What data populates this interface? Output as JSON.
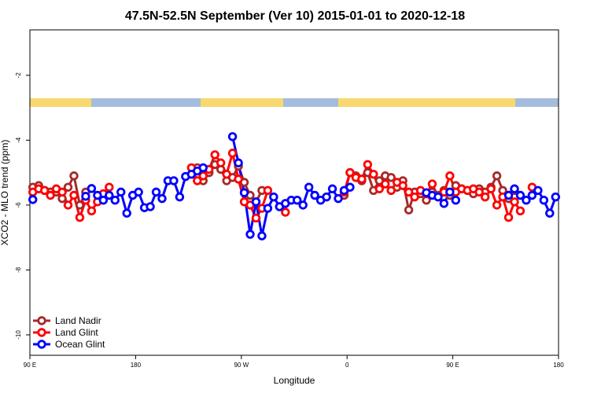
{
  "chart_data": {
    "type": "line",
    "title": "47.5N-52.5N September (Ver 10)   2015-01-01 to 2020-12-18",
    "x_label": "Longitude",
    "y_label": "XCO2 - MLO trend (ppm)",
    "xlim": [
      90,
      540
    ],
    "xticks": [
      {
        "value": 90,
        "label": "90 E"
      },
      180,
      {
        "value": 270,
        "label": "90 W"
      },
      {
        "value": 360,
        "label": "0"
      },
      {
        "value": 450,
        "label": "90 E"
      },
      {
        "value": 540,
        "label": "180"
      }
    ],
    "ylim": [
      -10.63,
      -0.6
    ],
    "yticks": [
      -2,
      -4,
      -6,
      -8,
      -10
    ],
    "legend": "bottom-left",
    "x": [
      92.5,
      97.5,
      102.5,
      107.5,
      112.5,
      117.5,
      122.5,
      127.5,
      132.5,
      137.5,
      142.5,
      147.5,
      152.5,
      157.5,
      162.5,
      167.5,
      172.5,
      177.5,
      182.5,
      187.5,
      192.5,
      197.5,
      202.5,
      207.5,
      212.5,
      217.5,
      222.5,
      227.5,
      232.5,
      237.5,
      242.5,
      247.5,
      252.5,
      257.5,
      262.5,
      267.5,
      272.5,
      277.5,
      282.5,
      287.5,
      292.5,
      297.5,
      302.5,
      307.5,
      312.5,
      317.5,
      322.5,
      327.5,
      332.5,
      337.5,
      342.5,
      347.5,
      352.5,
      357.5,
      362.5,
      367.5,
      372.5,
      377.5,
      382.5,
      387.5,
      392.5,
      397.5,
      402.5,
      407.5,
      412.5,
      417.5,
      422.5,
      427.5,
      432.5,
      437.5,
      442.5,
      447.5,
      452.5,
      457.5,
      462.5,
      467.5,
      472.5,
      477.5,
      482.5,
      487.5,
      492.5,
      497.5,
      502.5,
      507.5,
      512.5,
      517.5,
      522.5,
      527.5,
      532.5,
      537.5
    ],
    "series": [
      {
        "name": "Land Nadir",
        "color": "#a52a2a",
        "values": [
          -5.45,
          -5.4,
          -5.55,
          -5.6,
          -5.6,
          -5.8,
          -5.45,
          -5.1,
          -6.0,
          -5.6,
          null,
          null,
          null,
          null,
          null,
          null,
          null,
          null,
          null,
          null,
          null,
          null,
          null,
          null,
          null,
          null,
          null,
          null,
          -4.85,
          -5.25,
          -5.0,
          -4.75,
          -4.9,
          -5.25,
          -5.15,
          -4.8,
          -5.3,
          -5.7,
          -5.9,
          -5.55,
          null,
          null,
          null,
          null,
          null,
          null,
          null,
          null,
          null,
          null,
          null,
          null,
          null,
          -5.7,
          -5.0,
          -5.1,
          -5.25,
          -5.0,
          -5.55,
          -5.25,
          -5.1,
          -5.15,
          -5.45,
          -5.25,
          -6.15,
          -5.6,
          -5.65,
          -5.85,
          -5.6,
          -5.7,
          -5.55,
          -5.7,
          -5.4,
          -5.5,
          -5.55,
          -5.65,
          -5.5,
          -5.6,
          -5.45,
          -5.1,
          -5.55,
          -5.8,
          -5.55,
          null,
          null,
          null,
          null,
          null,
          null,
          null
        ]
      },
      {
        "name": "Land Glint",
        "color": "#ff0000",
        "values": [
          -5.6,
          -5.5,
          -5.55,
          -5.7,
          -5.5,
          -5.6,
          -6.0,
          -5.7,
          -6.38,
          -5.85,
          -6.18,
          -5.9,
          -5.65,
          -5.45,
          null,
          null,
          null,
          null,
          null,
          null,
          null,
          null,
          null,
          null,
          null,
          null,
          null,
          -4.85,
          -5.25,
          -5.1,
          -4.9,
          -4.45,
          -4.7,
          -5.05,
          -4.4,
          -5.2,
          -5.9,
          -6.0,
          -6.4,
          -6.1,
          -5.55,
          null,
          -6.05,
          -6.22,
          null,
          null,
          null,
          null,
          null,
          null,
          null,
          null,
          null,
          -5.6,
          -5.0,
          -5.15,
          -5.2,
          -4.75,
          -5.05,
          -5.5,
          -5.35,
          -5.55,
          -5.3,
          -5.4,
          -5.6,
          -5.75,
          -5.55,
          -5.65,
          -5.35,
          -5.75,
          -5.6,
          -5.1,
          -5.6,
          -5.5,
          -5.55,
          -5.5,
          -5.6,
          -5.75,
          -5.5,
          -6.0,
          -5.75,
          -6.38,
          -5.9,
          -6.18,
          null,
          -5.45,
          null,
          null,
          null,
          null
        ]
      },
      {
        "name": "Ocean Glint",
        "color": "#0000ff",
        "values": [
          -5.83,
          null,
          null,
          null,
          null,
          null,
          null,
          null,
          null,
          -5.73,
          -5.49,
          -5.7,
          -5.85,
          -5.7,
          -5.85,
          -5.6,
          -6.25,
          -5.7,
          -5.6,
          -6.08,
          -6.05,
          -5.6,
          -5.8,
          -5.25,
          -5.25,
          -5.75,
          -5.12,
          -5.05,
          -4.95,
          -4.85,
          null,
          null,
          null,
          null,
          -3.89,
          -4.7,
          -5.62,
          -6.9,
          -5.9,
          -6.95,
          -6.1,
          -5.75,
          -6.05,
          -5.95,
          -5.85,
          -5.85,
          -6.0,
          -5.45,
          -5.7,
          -5.85,
          -5.75,
          -5.5,
          -5.8,
          -5.55,
          -5.45,
          null,
          null,
          null,
          null,
          null,
          null,
          null,
          null,
          null,
          null,
          null,
          null,
          -5.62,
          -5.7,
          -5.75,
          -5.95,
          -5.6,
          -5.85,
          null,
          null,
          null,
          null,
          null,
          null,
          null,
          null,
          -5.7,
          -5.5,
          -5.7,
          -5.85,
          -5.7,
          -5.55,
          -5.85,
          -6.25,
          -5.75
        ]
      }
    ]
  }
}
